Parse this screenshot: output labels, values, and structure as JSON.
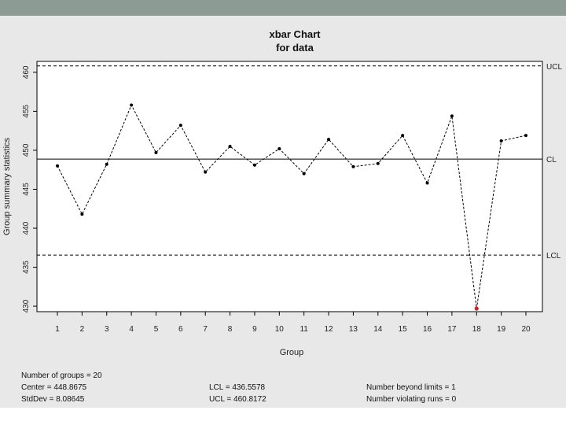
{
  "chart_data": {
    "type": "line",
    "title": "xbar Chart",
    "subtitle": "for data",
    "xlabel": "Group",
    "ylabel": "Group summary statistics",
    "categories": [
      "1",
      "2",
      "3",
      "4",
      "5",
      "6",
      "7",
      "8",
      "9",
      "10",
      "11",
      "12",
      "13",
      "14",
      "15",
      "16",
      "17",
      "18",
      "19",
      "20"
    ],
    "values": [
      448.0,
      441.8,
      448.2,
      455.8,
      449.7,
      453.2,
      447.2,
      450.5,
      448.1,
      450.2,
      447.0,
      451.4,
      447.9,
      448.3,
      451.9,
      445.8,
      454.4,
      429.7,
      451.2,
      451.9
    ],
    "ylim": [
      429.3,
      461.4
    ],
    "yticks": [
      430,
      435,
      440,
      445,
      450,
      455,
      460
    ],
    "ytick_labels": [
      "430",
      "435",
      "440",
      "445",
      "450",
      "455",
      "460"
    ],
    "center": 448.8675,
    "ucl": 460.8172,
    "lcl": 436.5578,
    "line_labels": {
      "ucl": "UCL",
      "center": "CL",
      "lcl": "LCL"
    },
    "violations": [
      18
    ],
    "colors": {
      "points": "#000000",
      "violation": "#d62020",
      "panel_bg": "#e8e8e8",
      "topbar": "#8c9b94"
    },
    "grid": false
  },
  "summary": {
    "groups": "Number of groups = 20",
    "center": "Center = 448.8675",
    "stddev": "StdDev = 8.08645",
    "lcl": "LCL = 436.5578",
    "ucl": "UCL = 460.8172",
    "beyond": "Number beyond limits = 1",
    "violating": "Number violating runs = 0"
  }
}
